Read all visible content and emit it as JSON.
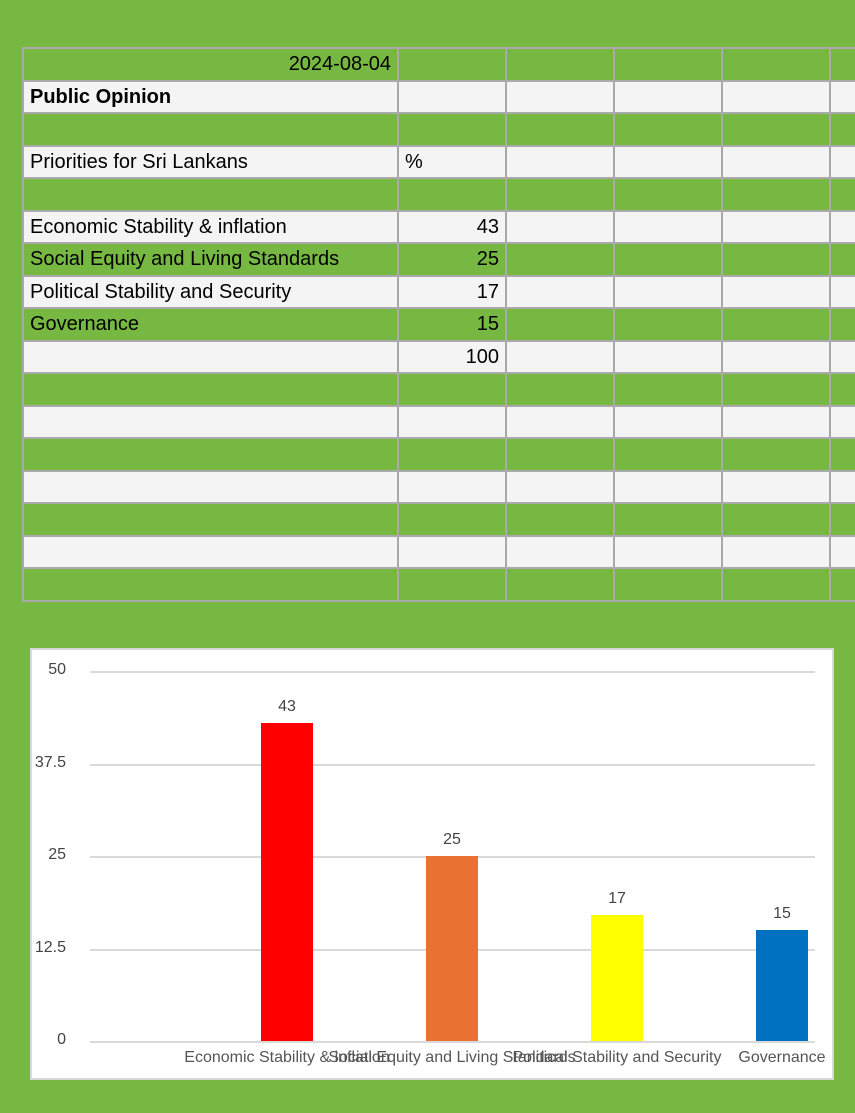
{
  "sheet": {
    "date": "2024-08-04",
    "title": "Public Opinion",
    "subtitle": "Priorities for Sri Lankans",
    "unit_header": "%",
    "rows": [
      {
        "label": "Economic Stability & inflation",
        "value": "43"
      },
      {
        "label": "Social Equity and Living Standards",
        "value": "25"
      },
      {
        "label": "Political Stability and Security",
        "value": "17"
      },
      {
        "label": "Governance",
        "value": "15"
      }
    ],
    "total": "100"
  },
  "colors": {
    "background": "#77b843",
    "row_light": "#f4f4f4",
    "gridline": "#aaaaaa"
  },
  "chart_data": {
    "type": "bar",
    "title": "",
    "xlabel": "",
    "ylabel": "",
    "categories": [
      "Economic Stability & inflation",
      "Social Equity and Living Standards",
      "Political Stability and Security",
      "Governance"
    ],
    "values": [
      43,
      25,
      17,
      15
    ],
    "bar_colors": [
      "#ff0000",
      "#e97132",
      "#ffff00",
      "#0070c0"
    ],
    "data_labels": [
      "43",
      "25",
      "17",
      "15"
    ],
    "yticks": [
      "0",
      "12.5",
      "25",
      "37.5",
      "50"
    ],
    "ylim": [
      0,
      50
    ],
    "grid": true,
    "legend": "none"
  }
}
